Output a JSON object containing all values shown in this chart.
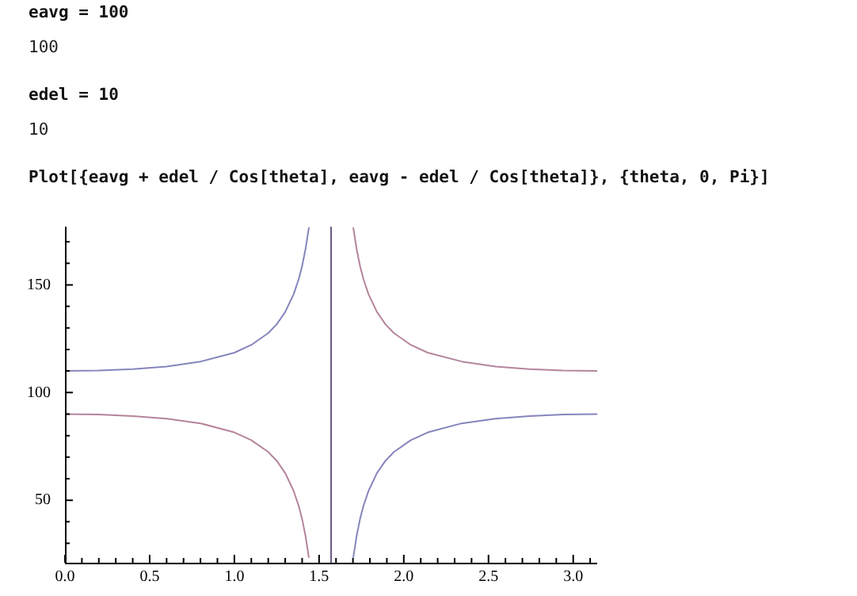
{
  "chart_data": {
    "type": "line",
    "annotations": [
      "eavg = 100",
      "100",
      "edel = 10",
      "10",
      "Plot[{eavg + edel / Cos[theta], eavg - edel / Cos[theta]}, {theta, 0, Pi}]"
    ],
    "x": [
      0,
      0.2,
      0.4,
      0.6,
      0.8,
      1.0,
      1.1,
      1.2,
      1.25,
      1.3,
      1.35,
      1.38,
      1.4,
      1.42,
      1.44,
      1.5708,
      1.7016,
      1.7216,
      1.7416,
      1.7616,
      1.7916,
      1.8416,
      1.8916,
      1.9416,
      2.0416,
      2.1416,
      2.3416,
      2.5416,
      2.7416,
      2.9416,
      3.1416
    ],
    "series": [
      {
        "color": "#8585bd",
        "values": [
          110,
          110.2,
          110.9,
          112.1,
          114.4,
          118.5,
          122.1,
          127.6,
          131.7,
          137.4,
          145.7,
          152.7,
          158.8,
          166.6,
          176.7,
          null,
          23.3,
          33.4,
          41.2,
          47.3,
          54.3,
          62.6,
          68.3,
          72.4,
          77.9,
          81.5,
          85.7,
          87.9,
          89.1,
          89.8,
          90
        ]
      },
      {
        "color": "#b5849c",
        "values": [
          90,
          89.8,
          89.1,
          87.9,
          85.7,
          81.5,
          77.9,
          72.4,
          68.3,
          62.6,
          54.3,
          47.3,
          41.2,
          33.4,
          23.3,
          null,
          176.7,
          166.6,
          158.8,
          152.7,
          145.7,
          137.4,
          131.7,
          127.6,
          122.1,
          118.5,
          114.4,
          112.1,
          110.9,
          110.2,
          110
        ]
      }
    ],
    "ref_lines": [
      {
        "axis": "x",
        "value": 1.5708,
        "color": "#6e5a86"
      }
    ],
    "xlim": [
      0,
      3.1416
    ],
    "xticks": [
      {
        "value": 0,
        "label": "0.0"
      },
      {
        "value": 0.5,
        "label": "0.5"
      },
      {
        "value": 1,
        "label": "1.0"
      },
      {
        "value": 1.5,
        "label": "1.5"
      },
      {
        "value": 2,
        "label": "2.0"
      },
      {
        "value": 2.5,
        "label": "2.5"
      },
      {
        "value": 3,
        "label": "3.0"
      }
    ],
    "ylim": [
      21,
      177
    ],
    "yticks": [
      50,
      100,
      150
    ],
    "grid": false,
    "legend": false,
    "marker": "none",
    "line_style": "solid"
  }
}
